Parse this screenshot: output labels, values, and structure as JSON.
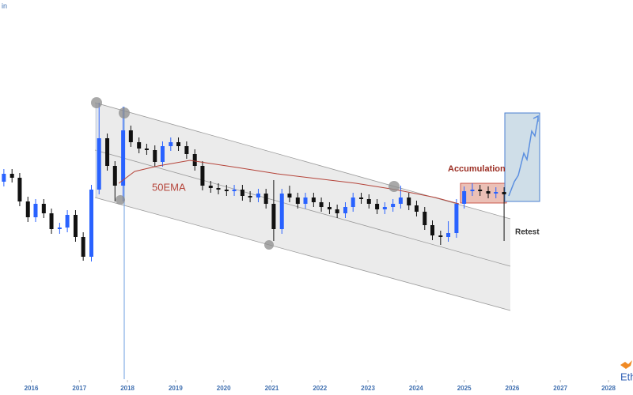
{
  "chart_data": {
    "type": "candlestick",
    "corner_label": "in",
    "brand_label": "Eth",
    "annotations": [
      "Accumulation",
      "50EMA",
      "Retest"
    ],
    "xlim": [
      2015.35,
      2028.51
    ],
    "ylim": [
      0,
      480
    ],
    "xticks": [
      2016,
      2017,
      2018,
      2019,
      2020,
      2021,
      2022,
      2023,
      2024,
      2025,
      2026,
      2027,
      2028
    ],
    "up_color": "#2962ff",
    "down_color": "#111111",
    "x": [
      2015.43,
      2015.6,
      2015.76,
      2015.93,
      2016.09,
      2016.26,
      2016.42,
      2016.59,
      2016.75,
      2016.92,
      2017.08,
      2017.25,
      2017.41,
      2017.58,
      2017.74,
      2017.91,
      2018.07,
      2018.24,
      2018.4,
      2018.57,
      2018.73,
      2018.9,
      2019.06,
      2019.23,
      2019.4,
      2019.56,
      2019.73,
      2019.89,
      2020.06,
      2020.22,
      2020.39,
      2020.55,
      2020.72,
      2020.88,
      2021.04,
      2021.21,
      2021.37,
      2021.54,
      2021.7,
      2021.87,
      2022.03,
      2022.2,
      2022.36,
      2022.53,
      2022.69,
      2022.86,
      2023.02,
      2023.19,
      2023.35,
      2023.52,
      2023.68,
      2023.85,
      2024.01,
      2024.18,
      2024.34,
      2024.51,
      2024.67,
      2024.84,
      2025.0,
      2025.17,
      2025.33,
      2025.5,
      2025.66,
      2025.83
    ],
    "open": [
      250,
      260,
      255,
      225,
      205,
      222,
      210,
      190,
      192,
      208,
      180,
      155,
      240,
      305,
      270,
      245,
      315,
      300,
      292,
      290,
      275,
      295,
      300,
      295,
      285,
      270,
      245,
      242,
      240,
      238,
      240,
      232,
      230,
      235,
      222,
      190,
      235,
      230,
      222,
      230,
      224,
      218,
      215,
      210,
      218,
      230,
      228,
      222,
      215,
      218,
      222,
      230,
      220,
      212,
      195,
      182,
      180,
      185,
      222,
      238,
      240,
      238,
      235,
      237
    ],
    "high": [
      266,
      266,
      261,
      231,
      228,
      228,
      216,
      198,
      214,
      214,
      186,
      246,
      350,
      311,
      276,
      345,
      321,
      306,
      298,
      296,
      301,
      306,
      306,
      301,
      291,
      276,
      251,
      248,
      246,
      246,
      246,
      238,
      241,
      241,
      252,
      241,
      245,
      236,
      236,
      236,
      230,
      224,
      221,
      224,
      236,
      236,
      234,
      228,
      224,
      228,
      245,
      236,
      226,
      218,
      201,
      188,
      200,
      228,
      244,
      248,
      246,
      244,
      243,
      243
    ],
    "low": [
      244,
      249,
      219,
      199,
      199,
      204,
      184,
      184,
      186,
      174,
      150,
      149,
      234,
      264,
      225,
      225,
      294,
      286,
      284,
      269,
      269,
      289,
      289,
      279,
      264,
      239,
      236,
      234,
      232,
      232,
      226,
      224,
      224,
      216,
      175,
      184,
      224,
      216,
      216,
      218,
      212,
      209,
      204,
      204,
      212,
      222,
      216,
      209,
      209,
      212,
      216,
      214,
      206,
      189,
      176,
      170,
      174,
      179,
      216,
      232,
      232,
      229,
      229,
      175
    ],
    "close": [
      260,
      255,
      225,
      205,
      222,
      210,
      190,
      192,
      208,
      180,
      155,
      240,
      305,
      270,
      245,
      315,
      300,
      292,
      290,
      275,
      295,
      300,
      295,
      285,
      270,
      245,
      242,
      240,
      238,
      240,
      232,
      230,
      235,
      222,
      190,
      235,
      230,
      222,
      230,
      224,
      218,
      215,
      210,
      218,
      230,
      228,
      222,
      215,
      218,
      222,
      230,
      220,
      212,
      195,
      182,
      180,
      185,
      222,
      238,
      240,
      238,
      235,
      237,
      234
    ],
    "ema": {
      "color": "#b5443a",
      "x": [
        2017.82,
        2018.15,
        2018.64,
        2019.3,
        2020.28,
        2021.11,
        2021.93,
        2022.75,
        2023.57,
        2024.4,
        2024.89
      ],
      "values": [
        248,
        263,
        270,
        277,
        268,
        260,
        254,
        248,
        240,
        230,
        222
      ]
    }
  }
}
